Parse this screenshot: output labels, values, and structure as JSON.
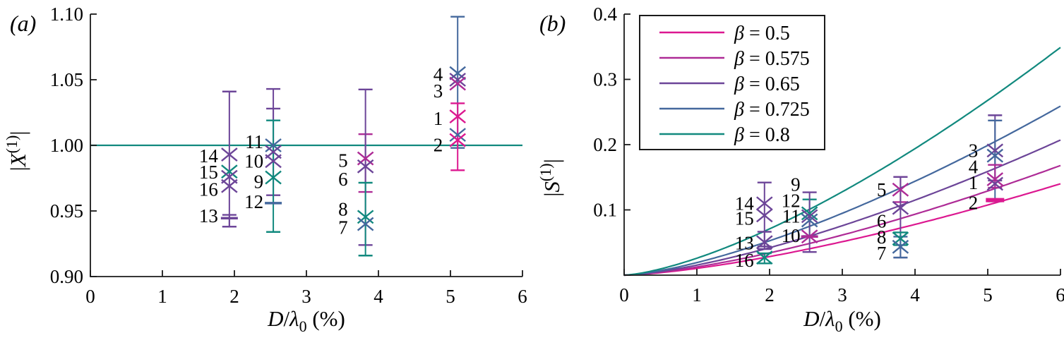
{
  "colors": {
    "b05": "#dc1890",
    "b0575": "#ae2b96",
    "b065": "#6c4598",
    "b0725": "#44689d",
    "b08": "#11897e",
    "axis": "#1a1a1a",
    "text": "#000000"
  },
  "chart_data": [
    {
      "type": "scatter",
      "title": "(a)",
      "xlabel": "D/λ0 (%)",
      "ylabel": "|X(1)|",
      "xlabel_parts": [
        [
          "i",
          "D"
        ],
        [
          "n",
          "/"
        ],
        [
          "i",
          "λ"
        ],
        [
          "sub",
          "0"
        ],
        [
          "n",
          " (%)"
        ]
      ],
      "ylabel_parts": [
        [
          "n",
          "|"
        ],
        [
          "i",
          "X"
        ],
        [
          "sup",
          "(1)"
        ],
        [
          "n",
          "|"
        ]
      ],
      "xlim": [
        0,
        6
      ],
      "ylim": [
        0.9,
        1.1
      ],
      "xtick_values": [
        0,
        1,
        2,
        3,
        4,
        5,
        6
      ],
      "xtick_labels": [
        "0",
        "1",
        "2",
        "3",
        "4",
        "5",
        "6"
      ],
      "ytick_values": [
        0.9,
        0.95,
        1.0,
        1.05,
        1.1
      ],
      "ytick_labels": [
        "0.90",
        "0.95",
        "1.00",
        "1.05",
        "1.10"
      ],
      "grid": false,
      "ref_line": {
        "y": 1.0,
        "color": "b08"
      },
      "points": [
        {
          "label": "4",
          "x": 5.1,
          "y": 1.055,
          "err": [
            0.998,
            1.098
          ],
          "color": "b0725",
          "marker": "x",
          "loff": [
            -21,
            11
          ]
        },
        {
          "label": "3",
          "x": 5.1,
          "y": 1.05,
          "color": "b065",
          "marker": "x",
          "loff": [
            -21,
            25
          ]
        },
        {
          "label": "",
          "x": 5.1,
          "y": 1.047,
          "color": "b0575",
          "marker": "x"
        },
        {
          "label": "1",
          "x": 5.1,
          "y": 1.022,
          "err": [
            0.981,
            1.032
          ],
          "color": "b05",
          "marker": "x",
          "loff": [
            -21,
            12
          ]
        },
        {
          "label": "",
          "x": 5.1,
          "y": 1.008,
          "color": "b0725",
          "marker": "x"
        },
        {
          "label": "2",
          "x": 5.1,
          "y": 1.004,
          "color": "b05",
          "marker": "x",
          "loff": [
            -21,
            16
          ]
        },
        {
          "label": "5",
          "x": 3.82,
          "y": 0.99,
          "err": [
            0.9645,
            1.0085
          ],
          "color": "b0575",
          "marker": "x",
          "loff": [
            -25,
            12
          ]
        },
        {
          "label": "6",
          "x": 3.82,
          "y": 0.984,
          "err": [
            0.924,
            1.0426
          ],
          "color": "b065",
          "marker": "x",
          "loff": [
            -25,
            27
          ]
        },
        {
          "label": "8",
          "x": 3.82,
          "y": 0.9455,
          "err": [
            0.916,
            0.9715
          ],
          "color": "b08",
          "marker": "x",
          "loff": [
            -25,
            -2
          ]
        },
        {
          "label": "7",
          "x": 3.82,
          "y": 0.94,
          "color": "b0725",
          "marker": "x",
          "loff": [
            -25,
            14
          ]
        },
        {
          "label": "11",
          "x": 2.54,
          "y": 1.0,
          "err": [
            0.956,
            1.043
          ],
          "ecolor": "b065",
          "color": "b0725",
          "marker": "x",
          "loff": [
            -14,
            4
          ]
        },
        {
          "label": "",
          "x": 2.54,
          "y": 0.995,
          "color": "b065",
          "marker": "x"
        },
        {
          "label": "10",
          "x": 2.54,
          "y": 0.988,
          "err": [
            0.962,
            1.028
          ],
          "color": "b065",
          "marker": "x",
          "loff": [
            -14,
            9
          ]
        },
        {
          "label": "9",
          "x": 2.54,
          "y": 0.9755,
          "err": [
            0.934,
            1.019
          ],
          "color": "b08",
          "marker": "x",
          "loff": [
            -14,
            15
          ]
        },
        {
          "label": "12",
          "x": 2.54,
          "y": 0.956,
          "color": "b0725",
          "marker": "cap",
          "loff": [
            -14,
            7
          ]
        },
        {
          "label": "14",
          "x": 1.93,
          "y": 0.993,
          "err": [
            0.938,
            1.041
          ],
          "color": "b065",
          "marker": "x",
          "loff": [
            -16,
            11
          ]
        },
        {
          "label": "15",
          "x": 1.93,
          "y": 0.98,
          "color": "b08",
          "marker": "x",
          "loff": [
            -16,
            10
          ]
        },
        {
          "label": "",
          "x": 1.93,
          "y": 0.976,
          "color": "b065",
          "marker": "x"
        },
        {
          "label": "16",
          "x": 1.93,
          "y": 0.969,
          "color": "b065",
          "marker": "x",
          "loff": [
            -16,
            14
          ]
        },
        {
          "label": "13",
          "x": 1.93,
          "y": 0.9445,
          "err": [
            0.938,
            0.947
          ],
          "color": "b065",
          "marker": "cap",
          "loff": [
            -16,
            6
          ]
        }
      ]
    },
    {
      "type": "scatter+line",
      "title": "(b)",
      "xlabel": "D/λ0 (%)",
      "ylabel": "|S(1)|",
      "xlabel_parts": [
        [
          "i",
          "D"
        ],
        [
          "n",
          "/"
        ],
        [
          "i",
          "λ"
        ],
        [
          "sub",
          "0"
        ],
        [
          "n",
          " (%)"
        ]
      ],
      "ylabel_parts": [
        [
          "n",
          "|"
        ],
        [
          "i",
          "S"
        ],
        [
          "sup",
          "(1)"
        ],
        [
          "n",
          "|"
        ]
      ],
      "xlim": [
        0,
        6
      ],
      "ylim": [
        0,
        0.4
      ],
      "xtick_values": [
        0,
        1,
        2,
        3,
        4,
        5,
        6
      ],
      "xtick_labels": [
        "0",
        "1",
        "2",
        "3",
        "4",
        "5",
        "6"
      ],
      "ytick_values": [
        0,
        0.1,
        0.2,
        0.3,
        0.4
      ],
      "ytick_labels": [
        "",
        "0.1",
        "0.2",
        "0.3",
        "0.4"
      ],
      "grid": false,
      "legend_position": "top-left",
      "legend": {
        "entries": [
          {
            "label": "β = 0.5",
            "parts": [
              [
                "i",
                "β"
              ],
              [
                "n",
                " = 0.5"
              ]
            ],
            "color": "b05"
          },
          {
            "label": "β = 0.575",
            "parts": [
              [
                "i",
                "β"
              ],
              [
                "n",
                " = 0.575"
              ]
            ],
            "color": "b0575"
          },
          {
            "label": "β = 0.65",
            "parts": [
              [
                "i",
                "β"
              ],
              [
                "n",
                " = 0.65"
              ]
            ],
            "color": "b065"
          },
          {
            "label": "β = 0.725",
            "parts": [
              [
                "i",
                "β"
              ],
              [
                "n",
                " = 0.725"
              ]
            ],
            "color": "b0725"
          },
          {
            "label": "β = 0.8",
            "parts": [
              [
                "i",
                "β"
              ],
              [
                "n",
                " = 0.8"
              ]
            ],
            "color": "b08"
          }
        ]
      },
      "curves": [
        {
          "beta": 0.5,
          "color": "b05",
          "y_at_x6": 0.14,
          "exponent": 1.45
        },
        {
          "beta": 0.575,
          "color": "b0575",
          "y_at_x6": 0.168,
          "exponent": 1.45
        },
        {
          "beta": 0.65,
          "color": "b065",
          "y_at_x6": 0.207,
          "exponent": 1.45
        },
        {
          "beta": 0.725,
          "color": "b0725",
          "y_at_x6": 0.259,
          "exponent": 1.45
        },
        {
          "beta": 0.8,
          "color": "b08",
          "y_at_x6": 0.349,
          "exponent": 1.45
        }
      ],
      "points": [
        {
          "label": "14",
          "x": 1.93,
          "y": 0.11,
          "err": [
            0.04,
            0.142
          ],
          "color": "b065",
          "marker": "x",
          "loff": [
            -15,
            9
          ]
        },
        {
          "label": "15",
          "x": 1.93,
          "y": 0.0915,
          "color": "b065",
          "marker": "x",
          "loff": [
            -15,
            13
          ]
        },
        {
          "label": "13",
          "x": 1.93,
          "y": 0.0505,
          "err": [
            0.044,
            0.0665
          ],
          "color": "b065",
          "marker": "x",
          "loff": [
            -15,
            10
          ]
        },
        {
          "label": "16",
          "x": 1.93,
          "y": 0.027,
          "err": [
            0.018,
            0.0335
          ],
          "color": "b08",
          "marker": "x",
          "loff": [
            -15,
            13
          ]
        },
        {
          "label": "9",
          "x": 2.55,
          "y": 0.0947,
          "err": [
            0.06,
            0.116
          ],
          "color": "b08",
          "marker": "x",
          "loff": [
            -13,
            -32
          ]
        },
        {
          "label": "12",
          "x": 2.55,
          "y": 0.0904,
          "err": [
            0.0355,
            0.127
          ],
          "color": "b065",
          "marker": "x",
          "loff": [
            -13,
            -13
          ]
        },
        {
          "label": "11",
          "x": 2.55,
          "y": 0.0839,
          "color": "b0725",
          "marker": "x",
          "loff": [
            -13,
            3
          ]
        },
        {
          "label": "10",
          "x": 2.55,
          "y": 0.0592,
          "color": "b0575",
          "marker": "xcap",
          "loff": [
            -13,
            8
          ]
        },
        {
          "label": "5",
          "x": 3.8,
          "y": 0.131,
          "err": [
            0.112,
            0.1505
          ],
          "color": "b0575",
          "marker": "x",
          "loff": [
            -20,
            9
          ]
        },
        {
          "label": "6",
          "x": 3.8,
          "y": 0.103,
          "err": [
            0.027,
            0.1505
          ],
          "color": "b065",
          "marker": "x",
          "loff": [
            -20,
            28
          ]
        },
        {
          "label": "8",
          "x": 3.8,
          "y": 0.056,
          "err": [
            0.046,
            0.0655
          ],
          "color": "b08",
          "marker": "x",
          "loff": [
            -20,
            7
          ]
        },
        {
          "label": "7",
          "x": 3.8,
          "y": 0.0435,
          "err": [
            0.027,
            0.059
          ],
          "color": "b0725",
          "marker": "x",
          "loff": [
            -20,
            18
          ]
        },
        {
          "label": "3",
          "x": 5.1,
          "y": 0.191,
          "err": [
            0.145,
            0.245
          ],
          "color": "b065",
          "marker": "x",
          "loff": [
            -24,
            9
          ]
        },
        {
          "label": "4",
          "x": 5.1,
          "y": 0.183,
          "err": [
            0.113,
            0.237
          ],
          "color": "b0725",
          "marker": "x",
          "loff": [
            -24,
            25
          ]
        },
        {
          "label": "1",
          "x": 5.1,
          "y": 0.147,
          "err": [
            0.134,
            0.169
          ],
          "color": "b0575",
          "marker": "x",
          "loff": [
            -24,
            14
          ]
        },
        {
          "label": "",
          "x": 5.1,
          "y": 0.14,
          "color": "b065",
          "marker": "x"
        },
        {
          "label": "2",
          "x": 5.1,
          "y": 0.115,
          "color": "b05",
          "marker": "cap2",
          "loff": [
            -24,
            13
          ]
        }
      ]
    }
  ]
}
